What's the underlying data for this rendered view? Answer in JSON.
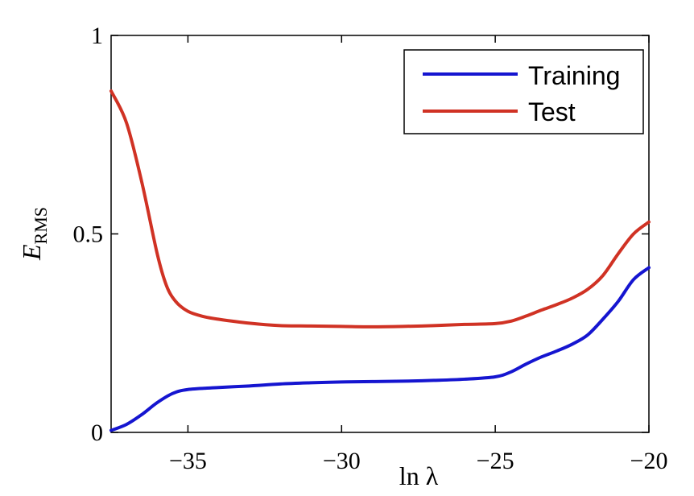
{
  "chart_data": {
    "type": "line",
    "xlim": [
      -37.5,
      -20
    ],
    "ylim": [
      0,
      1
    ],
    "xticks": [
      -35,
      -30,
      -25,
      -20
    ],
    "yticks": [
      0,
      0.5,
      1
    ],
    "xtick_labels": [
      "−35",
      "−30",
      "−25",
      "−20"
    ],
    "ytick_labels": [
      "0",
      "0.5",
      "1"
    ],
    "xlabel": "ln λ",
    "ylabel_main": "E",
    "ylabel_sub": "RMS",
    "grid": false,
    "legend_position": "top-right",
    "series": [
      {
        "name": "Training",
        "color": "#1515d0",
        "x": [
          -37.5,
          -37.0,
          -36.5,
          -36.0,
          -35.5,
          -35.0,
          -34.0,
          -33.0,
          -32.0,
          -31.0,
          -30.0,
          -29.0,
          -28.0,
          -27.0,
          -26.0,
          -25.0,
          -24.5,
          -24.0,
          -23.5,
          -23.0,
          -22.5,
          -22.0,
          -21.5,
          -21.0,
          -20.5,
          -20.0
        ],
        "y": [
          0.005,
          0.02,
          0.045,
          0.075,
          0.098,
          0.108,
          0.113,
          0.117,
          0.122,
          0.125,
          0.127,
          0.128,
          0.129,
          0.131,
          0.134,
          0.14,
          0.152,
          0.172,
          0.19,
          0.205,
          0.222,
          0.245,
          0.285,
          0.33,
          0.385,
          0.415
        ]
      },
      {
        "name": "Test",
        "color": "#d03224",
        "x": [
          -37.5,
          -37.0,
          -36.5,
          -36.0,
          -35.7,
          -35.4,
          -35.0,
          -34.5,
          -34.0,
          -33.0,
          -32.0,
          -31.0,
          -30.0,
          -29.0,
          -28.0,
          -27.0,
          -26.0,
          -25.0,
          -24.5,
          -24.0,
          -23.5,
          -23.0,
          -22.5,
          -22.0,
          -21.5,
          -21.0,
          -20.5,
          -20.0
        ],
        "y": [
          0.86,
          0.78,
          0.63,
          0.45,
          0.37,
          0.33,
          0.305,
          0.292,
          0.285,
          0.275,
          0.269,
          0.268,
          0.267,
          0.266,
          0.267,
          0.269,
          0.272,
          0.274,
          0.28,
          0.293,
          0.308,
          0.322,
          0.338,
          0.36,
          0.395,
          0.45,
          0.5,
          0.53
        ]
      }
    ]
  }
}
